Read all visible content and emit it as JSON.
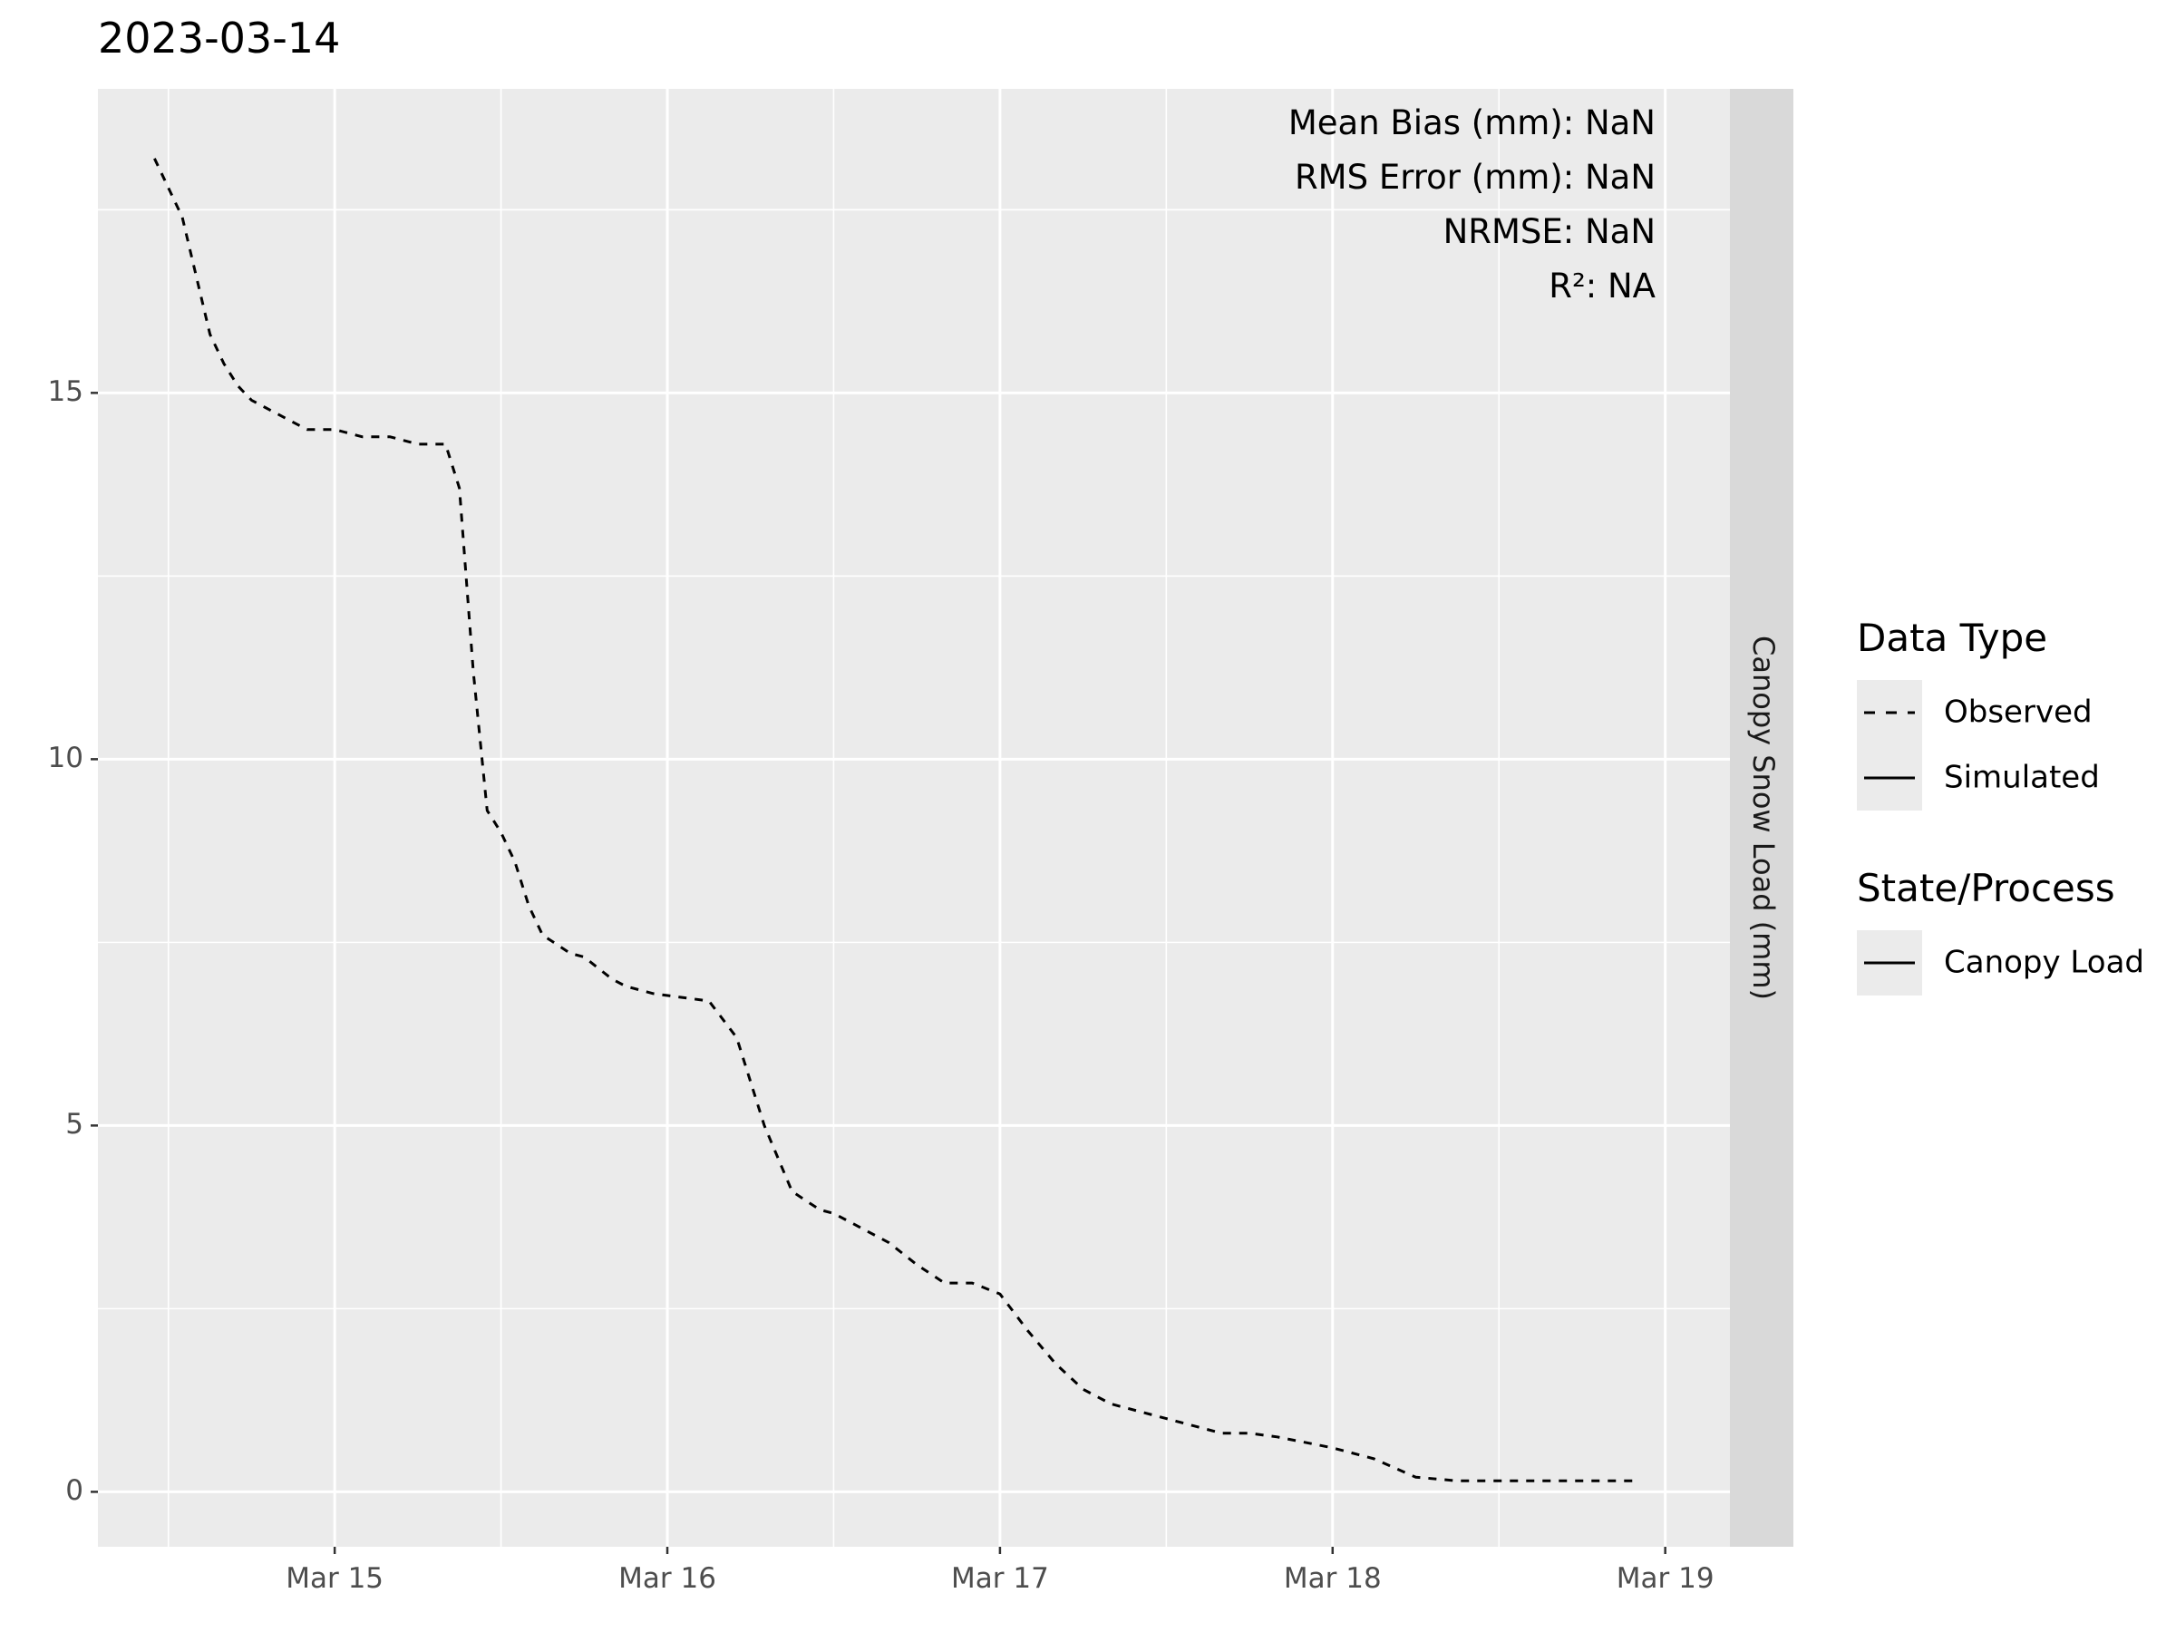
{
  "chart_data": {
    "type": "line",
    "title": "2023-03-14",
    "xlabel": "",
    "ylabel": "",
    "facet_strip_label": "Canopy Snow Load (mm)",
    "x_tick_labels": [
      "Mar 15",
      "Mar 16",
      "Mar 17",
      "Mar 18",
      "Mar 19"
    ],
    "y_tick_labels": [
      "0",
      "5",
      "10",
      "15"
    ],
    "xlim": [
      "2023-03-14 06:55",
      "2023-03-19 04:40"
    ],
    "ylim": [
      -0.75,
      19.15
    ],
    "grid": true,
    "legend_placement": "right",
    "annotations": [
      "Mean Bias (mm): NaN",
      "RMS Error (mm): NaN",
      "NRMSE: NaN",
      "R²: NA"
    ],
    "legends": [
      {
        "title": "Data Type",
        "items": [
          {
            "label": "Observed",
            "linetype": "dashed"
          },
          {
            "label": "Simulated",
            "linetype": "solid"
          }
        ]
      },
      {
        "title": "State/Process",
        "items": [
          {
            "label": "Canopy Load",
            "linetype": "solid"
          }
        ]
      }
    ],
    "series": [
      {
        "name": "Observed",
        "linetype": "dashed",
        "x": [
          "2023-03-14 11:00",
          "2023-03-14 12:00",
          "2023-03-14 13:00",
          "2023-03-14 14:00",
          "2023-03-14 15:00",
          "2023-03-14 16:00",
          "2023-03-14 17:00",
          "2023-03-14 18:00",
          "2023-03-14 19:00",
          "2023-03-14 20:00",
          "2023-03-14 21:00",
          "2023-03-14 22:00",
          "2023-03-15 00:00",
          "2023-03-15 02:00",
          "2023-03-15 04:00",
          "2023-03-15 06:00",
          "2023-03-15 08:00",
          "2023-03-15 09:00",
          "2023-03-15 10:00",
          "2023-03-15 11:00",
          "2023-03-15 12:00",
          "2023-03-15 12:30",
          "2023-03-15 13:00",
          "2023-03-15 14:00",
          "2023-03-15 15:00",
          "2023-03-15 17:00",
          "2023-03-15 18:00",
          "2023-03-15 20:00",
          "2023-03-15 21:00",
          "2023-03-15 23:00",
          "2023-03-16 01:00",
          "2023-03-16 03:00",
          "2023-03-16 05:00",
          "2023-03-16 07:00",
          "2023-03-16 09:00",
          "2023-03-16 11:00",
          "2023-03-16 12:00",
          "2023-03-16 13:00",
          "2023-03-16 14:00",
          "2023-03-16 16:00",
          "2023-03-16 18:00",
          "2023-03-16 20:00",
          "2023-03-16 22:00",
          "2023-03-17 00:00",
          "2023-03-17 02:00",
          "2023-03-17 04:00",
          "2023-03-17 06:00",
          "2023-03-17 08:00",
          "2023-03-17 10:00",
          "2023-03-17 12:00",
          "2023-03-17 14:00",
          "2023-03-17 16:00",
          "2023-03-17 18:00",
          "2023-03-17 20:00",
          "2023-03-18 00:00",
          "2023-03-18 03:00",
          "2023-03-18 06:00",
          "2023-03-18 09:00",
          "2023-03-18 12:00",
          "2023-03-18 15:00",
          "2023-03-18 18:00",
          "2023-03-18 20:00",
          "2023-03-18 21:00",
          "2023-03-18 22:00"
        ],
        "values": [
          18.2,
          17.8,
          17.4,
          16.6,
          15.8,
          15.4,
          15.1,
          14.9,
          14.8,
          14.7,
          14.6,
          14.5,
          14.5,
          14.4,
          14.4,
          14.3,
          14.3,
          13.7,
          11.2,
          9.3,
          9.0,
          8.8,
          8.6,
          8.0,
          7.6,
          7.35,
          7.3,
          7.0,
          6.9,
          6.8,
          6.75,
          6.7,
          6.2,
          5.0,
          4.1,
          3.85,
          3.8,
          3.7,
          3.6,
          3.4,
          3.1,
          2.85,
          2.85,
          2.7,
          2.2,
          1.75,
          1.4,
          1.2,
          1.1,
          1.0,
          0.9,
          0.8,
          0.8,
          0.75,
          0.6,
          0.45,
          0.2,
          0.15,
          0.15,
          0.15,
          0.15,
          0.15,
          0.15,
          0.15
        ]
      },
      {
        "name": "Simulated",
        "linetype": "solid",
        "x": [],
        "values": []
      }
    ]
  }
}
